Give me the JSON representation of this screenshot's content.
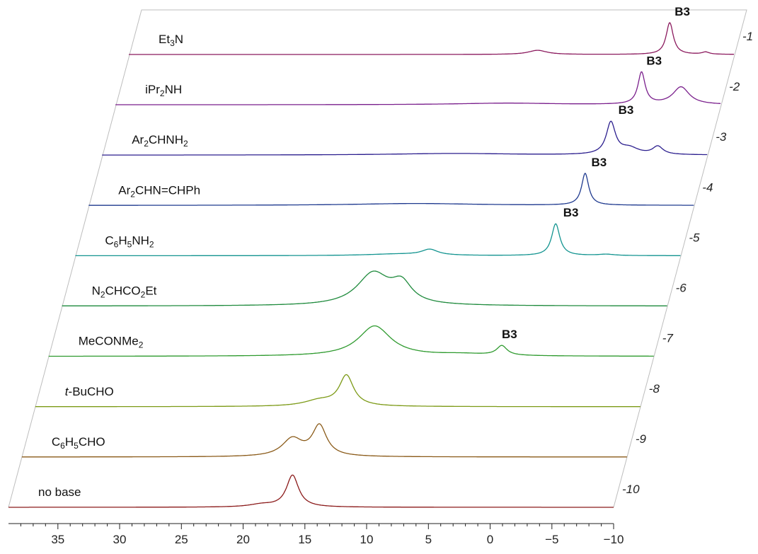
{
  "chart_data": {
    "type": "line",
    "style": "stacked-waterfall spectra",
    "title": "",
    "xlabel": "",
    "ylabel": "",
    "xlim": [
      39,
      -10
    ],
    "x_ticks": [
      35,
      30,
      25,
      20,
      15,
      10,
      5,
      0,
      -5,
      -10
    ],
    "x_tick_labels": [
      "35",
      "30",
      "25",
      "20",
      "15",
      "10",
      "5",
      "0",
      "−5",
      "−10"
    ],
    "grid": false,
    "legend": "none",
    "peak_annotation": "B3",
    "series": [
      {
        "index": "1",
        "label": [
          "Et",
          {
            "sub": "3"
          },
          "N"
        ],
        "color": "#8b1a5e",
        "peaks": [
          {
            "x": -4.8,
            "h": 1.0,
            "w": 0.35
          },
          {
            "x": 5.9,
            "h": 0.13,
            "w": 0.9
          },
          {
            "x": -7.7,
            "h": 0.07,
            "w": 0.35
          }
        ],
        "annotation_x": -5.2
      },
      {
        "index": "2",
        "label": [
          "iPr",
          {
            "sub": "2"
          },
          "NH"
        ],
        "color": "#7a1f8c",
        "peaks": [
          {
            "x": -3.6,
            "h": 1.0,
            "w": 0.35
          },
          {
            "x": -6.8,
            "h": 0.55,
            "w": 0.8
          },
          {
            "x": 7.3,
            "h": 0.05,
            "w": 5.0
          }
        ],
        "annotation_x": -4.0
      },
      {
        "index": "3",
        "label": [
          "Ar",
          {
            "sub": "2"
          },
          "CHNH",
          {
            "sub": "2"
          }
        ],
        "color": "#2b1e8e",
        "peaks": [
          {
            "x": -2.2,
            "h": 1.0,
            "w": 0.45
          },
          {
            "x": -3.7,
            "h": 0.2,
            "w": 0.9
          },
          {
            "x": -6.0,
            "h": 0.25,
            "w": 0.5
          },
          {
            "x": 10.5,
            "h": 0.05,
            "w": 6.0
          }
        ],
        "annotation_x": -2.8
      },
      {
        "index": "4",
        "label": [
          "Ar",
          {
            "sub": "2"
          },
          "CHN=CHPh"
        ],
        "color": "#1f3a8f",
        "peaks": [
          {
            "x": -1.2,
            "h": 1.0,
            "w": 0.35
          },
          {
            "x": 12.5,
            "h": 0.06,
            "w": 6.0
          }
        ],
        "annotation_x": -1.7
      },
      {
        "index": "5",
        "label": [
          "C",
          {
            "sub": "6"
          },
          "H",
          {
            "sub": "5"
          },
          "NH",
          {
            "sub": "2"
          }
        ],
        "color": "#139490",
        "peaks": [
          {
            "x": 0.1,
            "h": 1.0,
            "w": 0.4
          },
          {
            "x": 10.3,
            "h": 0.18,
            "w": 0.8
          },
          {
            "x": 13.0,
            "h": 0.05,
            "w": 3.0
          },
          {
            "x": -4.0,
            "h": 0.04,
            "w": 0.8
          }
        ],
        "annotation_x": -0.5
      },
      {
        "index": "6",
        "label": [
          "N",
          {
            "sub": "2"
          },
          "CHCO",
          {
            "sub": "2"
          },
          "Et"
        ],
        "color": "#1e8a3c",
        "peaks": [
          {
            "x": 13.8,
            "h": 1.0,
            "w": 1.6
          },
          {
            "x": 11.5,
            "h": 0.6,
            "w": 1.0
          }
        ],
        "annotation_x": null
      },
      {
        "index": "7",
        "label": [
          "MeCONMe",
          {
            "sub": "2"
          }
        ],
        "color": "#2e9a2e",
        "peaks": [
          {
            "x": 12.6,
            "h": 0.95,
            "w": 1.6
          },
          {
            "x": 2.3,
            "h": 0.3,
            "w": 0.5
          },
          {
            "x": 5.5,
            "h": 0.06,
            "w": 2.5
          }
        ],
        "annotation_x": 2.3
      },
      {
        "index": "8",
        "label": [
          {
            "it": "t"
          },
          "-BuCHO"
        ],
        "color": "#7c9a16",
        "peaks": [
          {
            "x": 13.8,
            "h": 0.95,
            "w": 0.7
          },
          {
            "x": 16.0,
            "h": 0.18,
            "w": 1.5
          }
        ],
        "annotation_x": null
      },
      {
        "index": "9",
        "label": [
          "C",
          {
            "sub": "6"
          },
          "H",
          {
            "sub": "5"
          },
          "CHO"
        ],
        "color": "#8a5a18",
        "peaks": [
          {
            "x": 14.9,
            "h": 0.95,
            "w": 0.7
          },
          {
            "x": 17.1,
            "h": 0.55,
            "w": 1.0
          }
        ],
        "annotation_x": null
      },
      {
        "index": "10",
        "label": [
          "no base"
        ],
        "color": "#8b1a1a",
        "peaks": [
          {
            "x": 16.0,
            "h": 1.0,
            "w": 0.6
          },
          {
            "x": 18.5,
            "h": 0.08,
            "w": 1.2
          }
        ],
        "annotation_x": null
      }
    ]
  }
}
